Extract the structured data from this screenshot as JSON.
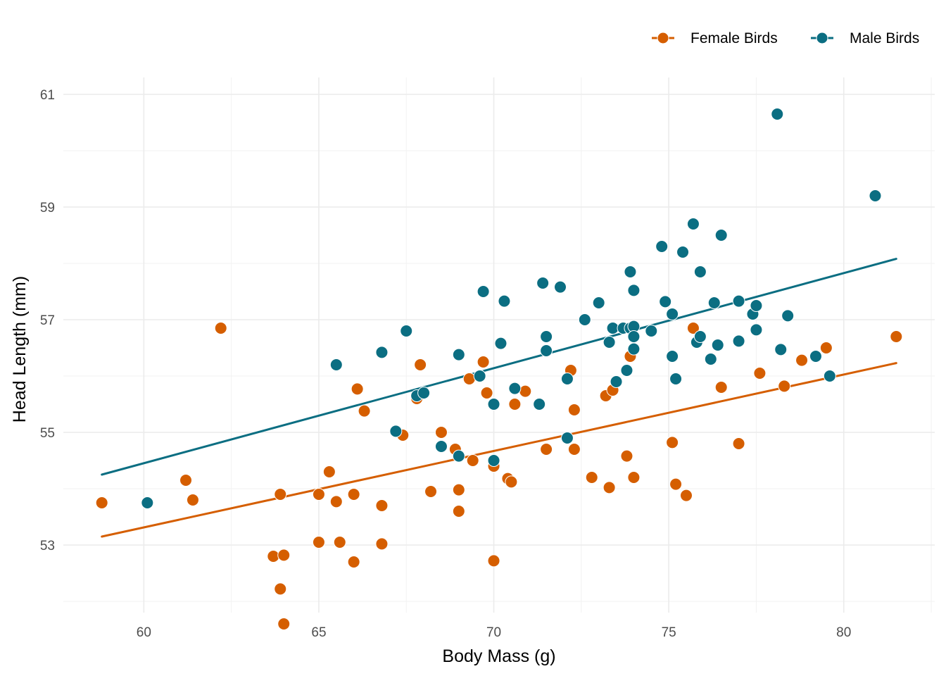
{
  "chart_data": {
    "type": "scatter",
    "title": "",
    "xlabel": "Body Mass (g)",
    "ylabel": "Head Length (mm)",
    "xlim": [
      57.7,
      82.6
    ],
    "ylim": [
      51.8,
      61.3
    ],
    "x_ticks": [
      60,
      65,
      70,
      75,
      80
    ],
    "y_ticks": [
      53,
      55,
      57,
      59,
      61
    ],
    "grid": true,
    "legend": "top-right",
    "series": [
      {
        "name": "Female Birds",
        "color": "#D55E00",
        "points": [
          [
            58.8,
            53.75
          ],
          [
            61.2,
            54.15
          ],
          [
            61.4,
            53.8
          ],
          [
            62.2,
            56.85
          ],
          [
            63.7,
            52.8
          ],
          [
            64.0,
            52.82
          ],
          [
            63.9,
            52.22
          ],
          [
            64.0,
            51.6
          ],
          [
            63.9,
            53.9
          ],
          [
            65.0,
            53.05
          ],
          [
            65.0,
            53.9
          ],
          [
            65.3,
            54.3
          ],
          [
            65.5,
            53.77
          ],
          [
            65.6,
            53.05
          ],
          [
            66.0,
            52.7
          ],
          [
            66.0,
            53.9
          ],
          [
            66.1,
            55.77
          ],
          [
            66.3,
            55.38
          ],
          [
            66.8,
            53.02
          ],
          [
            66.8,
            53.7
          ],
          [
            67.4,
            54.95
          ],
          [
            67.8,
            55.6
          ],
          [
            67.9,
            56.2
          ],
          [
            68.2,
            53.95
          ],
          [
            68.5,
            55.0
          ],
          [
            68.9,
            54.7
          ],
          [
            69.0,
            53.6
          ],
          [
            69.0,
            53.98
          ],
          [
            69.3,
            55.95
          ],
          [
            69.4,
            54.5
          ],
          [
            69.7,
            56.25
          ],
          [
            69.8,
            55.7
          ],
          [
            70.0,
            54.4
          ],
          [
            70.0,
            52.72
          ],
          [
            70.4,
            54.18
          ],
          [
            70.5,
            54.12
          ],
          [
            70.6,
            55.5
          ],
          [
            70.9,
            55.73
          ],
          [
            71.5,
            54.7
          ],
          [
            72.2,
            56.1
          ],
          [
            72.3,
            55.4
          ],
          [
            72.3,
            54.7
          ],
          [
            72.8,
            54.2
          ],
          [
            73.2,
            55.65
          ],
          [
            73.3,
            54.02
          ],
          [
            73.4,
            55.75
          ],
          [
            73.8,
            54.58
          ],
          [
            73.9,
            56.35
          ],
          [
            74.0,
            54.2
          ],
          [
            75.1,
            54.82
          ],
          [
            75.2,
            54.08
          ],
          [
            75.5,
            53.88
          ],
          [
            75.7,
            56.85
          ],
          [
            76.5,
            55.8
          ],
          [
            77.0,
            54.8
          ],
          [
            77.6,
            56.05
          ],
          [
            78.3,
            55.82
          ],
          [
            78.8,
            56.28
          ],
          [
            79.5,
            56.5
          ],
          [
            81.5,
            56.7
          ]
        ],
        "trend": [
          [
            58.8,
            53.15
          ],
          [
            81.5,
            56.23
          ]
        ]
      },
      {
        "name": "Male Birds",
        "color": "#0B6E82",
        "points": [
          [
            60.1,
            53.75
          ],
          [
            65.5,
            56.2
          ],
          [
            66.8,
            56.42
          ],
          [
            67.2,
            55.02
          ],
          [
            67.5,
            56.8
          ],
          [
            67.8,
            55.65
          ],
          [
            68.0,
            55.7
          ],
          [
            68.5,
            54.75
          ],
          [
            69.0,
            54.58
          ],
          [
            69.0,
            56.38
          ],
          [
            69.6,
            56.0
          ],
          [
            69.7,
            57.5
          ],
          [
            70.0,
            55.5
          ],
          [
            70.0,
            54.5
          ],
          [
            70.2,
            56.58
          ],
          [
            70.3,
            57.33
          ],
          [
            70.6,
            55.78
          ],
          [
            71.3,
            55.5
          ],
          [
            71.4,
            57.65
          ],
          [
            71.5,
            56.45
          ],
          [
            71.5,
            56.7
          ],
          [
            71.9,
            57.58
          ],
          [
            72.1,
            54.9
          ],
          [
            72.1,
            55.95
          ],
          [
            72.6,
            57.0
          ],
          [
            73.0,
            57.3
          ],
          [
            73.3,
            56.6
          ],
          [
            73.4,
            56.85
          ],
          [
            73.5,
            55.9
          ],
          [
            73.7,
            56.85
          ],
          [
            73.8,
            56.1
          ],
          [
            73.9,
            56.85
          ],
          [
            73.9,
            57.85
          ],
          [
            74.0,
            57.52
          ],
          [
            74.0,
            56.88
          ],
          [
            74.0,
            56.7
          ],
          [
            74.0,
            56.48
          ],
          [
            74.5,
            56.8
          ],
          [
            74.8,
            58.3
          ],
          [
            74.9,
            57.32
          ],
          [
            75.1,
            57.1
          ],
          [
            75.1,
            56.35
          ],
          [
            75.2,
            55.95
          ],
          [
            75.4,
            58.2
          ],
          [
            75.7,
            58.7
          ],
          [
            75.8,
            56.6
          ],
          [
            75.9,
            56.7
          ],
          [
            75.9,
            57.85
          ],
          [
            76.2,
            56.3
          ],
          [
            76.3,
            57.3
          ],
          [
            76.4,
            56.55
          ],
          [
            76.5,
            58.5
          ],
          [
            77.0,
            57.33
          ],
          [
            77.0,
            56.62
          ],
          [
            77.4,
            57.1
          ],
          [
            77.5,
            57.25
          ],
          [
            77.5,
            56.82
          ],
          [
            78.1,
            60.65
          ],
          [
            78.2,
            56.47
          ],
          [
            78.4,
            57.07
          ],
          [
            79.2,
            56.35
          ],
          [
            79.6,
            56.0
          ],
          [
            80.9,
            59.2
          ]
        ],
        "trend": [
          [
            58.8,
            54.25
          ],
          [
            81.5,
            58.08
          ]
        ]
      }
    ]
  }
}
